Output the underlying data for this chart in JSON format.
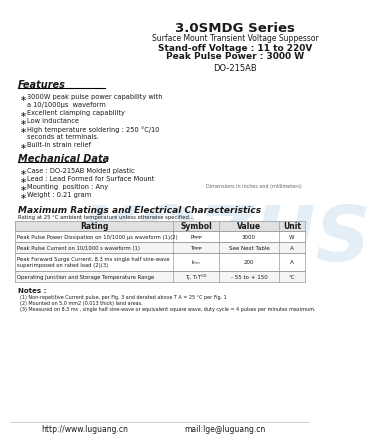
{
  "title": "3.0SMDG Series",
  "subtitle": "Surface Mount Transient Voltage Suppessor",
  "specs_line1": "Stand-off Voltage : 11 to 220V",
  "specs_line2": "Peak Pulse Power : 3000 W",
  "package": "DO-215AB",
  "features_title": "Features",
  "features": [
    [
      "3000W peak pulse power capability with",
      true
    ],
    [
      "a 10/1000μs  waveform",
      false
    ],
    [
      "Excellent clamping capability",
      true
    ],
    [
      "Low inductance",
      true
    ],
    [
      "High temperature soldering : 250 °C/10",
      true
    ],
    [
      "seconds at terminals.",
      false
    ],
    [
      "Built-in strain relief",
      true
    ]
  ],
  "mechanical_title": "Mechanical Data",
  "mechanical": [
    "Case : DO-215AB Molded plastic",
    "Lead : Lead Formed for Surface Mount",
    "Mounting  position : Any",
    "Weight : 0.21 gram"
  ],
  "dim_note": "Dimensions in inches and (millimeters)",
  "table_title": "Maximum Ratings and Electrical Characteristics",
  "table_subtitle": "Rating at 25 °C ambient temperature unless otherwise specified...",
  "table_headers": [
    "Rating",
    "Symbol",
    "Value",
    "Unit"
  ],
  "table_rows": [
    [
      "Peak Pulse Power Dissipation on 10/1000 μs waveform (1)(2)",
      "Pᴘᴘ",
      "3000",
      "W"
    ],
    [
      "Peak Pulse Current on 10/1000 s waveform (1)",
      "Tᴘᴘ",
      "See Next Table",
      "A"
    ],
    [
      "Peak Forward Surge Current, 8.3 ms single half sine-wave\nsuperimposed on rated load (2)(3)",
      "Iₜₜₘ",
      "200",
      "A"
    ],
    [
      "Operating Junction and Storage Temperature Range",
      "Tⱼ, TₜTᴳᴳ",
      "- 55 to + 150",
      "°C"
    ]
  ],
  "notes_title": "Notes :",
  "notes": [
    "(1) Non-repetitive Current pulse, per Fig. 3 and derated above T A = 25 °C per Fig. 1",
    "(2) Mounted on 5.0 mm2 (0.013 thick) land areas.",
    "(3) Measured on 8.3 ms , single half sine-wave or equivalent square wave, duty cycle = 4 pulses per minutes maximum."
  ],
  "footer_left": "http://www.luguang.cn",
  "footer_right": "mail:lge@luguang.cn",
  "watermark_text": "KOZUS",
  "bg_color": "#ffffff",
  "text_color": "#1a1a1a",
  "header_bg": "#e8e8e8",
  "table_line_color": "#999999"
}
